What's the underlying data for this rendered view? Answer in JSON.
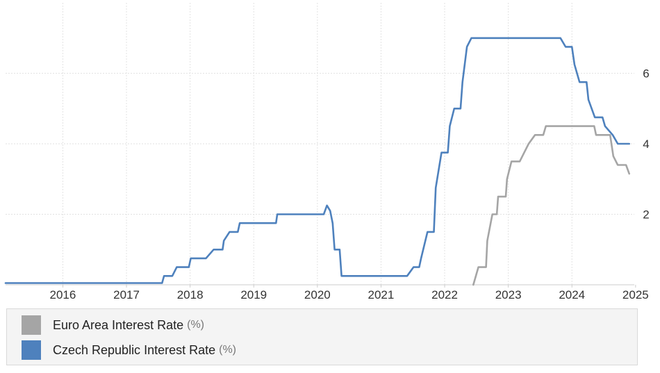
{
  "chart_data": {
    "type": "line",
    "title": "",
    "xlabel": "",
    "ylabel": "",
    "xlim": [
      2015.1,
      2024.98
    ],
    "ylim": [
      0,
      8
    ],
    "x_ticks": [
      "2016",
      "2017",
      "2018",
      "2019",
      "2020",
      "2021",
      "2022",
      "2023",
      "2024",
      "2025"
    ],
    "y_ticks": [
      "2",
      "4",
      "6"
    ],
    "grid": true,
    "legend_position": "bottom",
    "series": [
      {
        "name": "Euro Area Interest Rate",
        "unit": "(%)",
        "color": "#a5a5a5",
        "points": [
          [
            2022.45,
            0
          ],
          [
            2022.53,
            0.5
          ],
          [
            2022.65,
            0.5
          ],
          [
            2022.67,
            1.25
          ],
          [
            2022.75,
            2.0
          ],
          [
            2022.82,
            2.0
          ],
          [
            2022.84,
            2.5
          ],
          [
            2022.96,
            2.5
          ],
          [
            2022.98,
            3.0
          ],
          [
            2023.05,
            3.5
          ],
          [
            2023.18,
            3.5
          ],
          [
            2023.25,
            3.75
          ],
          [
            2023.32,
            4.0
          ],
          [
            2023.42,
            4.25
          ],
          [
            2023.55,
            4.25
          ],
          [
            2023.59,
            4.5
          ],
          [
            2024.35,
            4.5
          ],
          [
            2024.38,
            4.25
          ],
          [
            2024.6,
            4.25
          ],
          [
            2024.65,
            3.65
          ],
          [
            2024.72,
            3.4
          ],
          [
            2024.85,
            3.4
          ],
          [
            2024.9,
            3.15
          ]
        ]
      },
      {
        "name": "Czech Republic Interest Rate",
        "unit": "(%)",
        "color": "#4e81bd",
        "points": [
          [
            2015.1,
            0.05
          ],
          [
            2017.56,
            0.05
          ],
          [
            2017.59,
            0.25
          ],
          [
            2017.72,
            0.25
          ],
          [
            2017.79,
            0.5
          ],
          [
            2017.98,
            0.5
          ],
          [
            2018.01,
            0.75
          ],
          [
            2018.25,
            0.75
          ],
          [
            2018.37,
            1.0
          ],
          [
            2018.51,
            1.0
          ],
          [
            2018.53,
            1.25
          ],
          [
            2018.62,
            1.5
          ],
          [
            2018.75,
            1.5
          ],
          [
            2018.78,
            1.75
          ],
          [
            2019.35,
            1.75
          ],
          [
            2019.37,
            2.0
          ],
          [
            2020.1,
            2.0
          ],
          [
            2020.15,
            2.25
          ],
          [
            2020.2,
            2.1
          ],
          [
            2020.24,
            1.75
          ],
          [
            2020.27,
            1.0
          ],
          [
            2020.35,
            1.0
          ],
          [
            2020.38,
            0.25
          ],
          [
            2021.41,
            0.25
          ],
          [
            2021.51,
            0.5
          ],
          [
            2021.6,
            0.5
          ],
          [
            2021.63,
            0.75
          ],
          [
            2021.73,
            1.5
          ],
          [
            2021.83,
            1.5
          ],
          [
            2021.86,
            2.75
          ],
          [
            2021.95,
            3.75
          ],
          [
            2022.05,
            3.75
          ],
          [
            2022.08,
            4.5
          ],
          [
            2022.15,
            5.0
          ],
          [
            2022.25,
            5.0
          ],
          [
            2022.28,
            5.75
          ],
          [
            2022.35,
            6.75
          ],
          [
            2022.42,
            7.0
          ],
          [
            2023.82,
            7.0
          ],
          [
            2023.9,
            6.75
          ],
          [
            2024.0,
            6.75
          ],
          [
            2024.04,
            6.25
          ],
          [
            2024.12,
            5.75
          ],
          [
            2024.23,
            5.75
          ],
          [
            2024.26,
            5.25
          ],
          [
            2024.36,
            4.75
          ],
          [
            2024.48,
            4.75
          ],
          [
            2024.52,
            4.5
          ],
          [
            2024.64,
            4.25
          ],
          [
            2024.72,
            4.0
          ],
          [
            2024.9,
            4.0
          ]
        ]
      }
    ]
  }
}
